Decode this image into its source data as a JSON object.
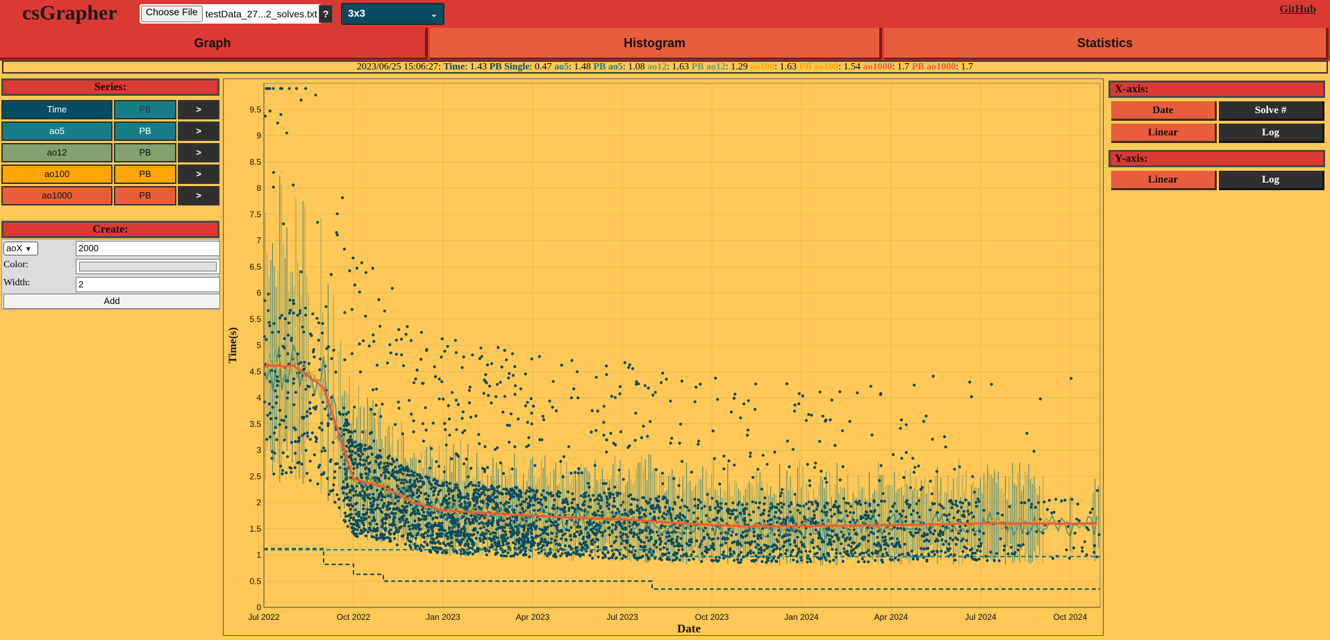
{
  "app": {
    "title": "csGrapher",
    "github": "GitHub"
  },
  "file": {
    "button": "Choose File",
    "name": "testData_27...2_solves.txt",
    "help": "?"
  },
  "puzzle": {
    "selected": "3x3"
  },
  "tabs": [
    {
      "label": "Graph"
    },
    {
      "label": "Histogram"
    },
    {
      "label": "Statistics"
    }
  ],
  "status": {
    "date": "2023/06/25 15:06:27:",
    "items": [
      {
        "label": "Time",
        "value": "1.43",
        "color": "#084c61"
      },
      {
        "label": "PB Single",
        "value": "0.47",
        "color": "#084c61"
      },
      {
        "label": "ao5",
        "value": "1.48",
        "color": "#177e89"
      },
      {
        "label": "PB ao5",
        "value": "1.08",
        "color": "#177e89"
      },
      {
        "label": "ao12",
        "value": "1.63",
        "color": "#6b9b6b"
      },
      {
        "label": "PB ao12",
        "value": "1.29",
        "color": "#6b9b6b"
      },
      {
        "label": "ao100",
        "value": "1.63",
        "color": "#ffa600"
      },
      {
        "label": "PB ao100",
        "value": "1.54",
        "color": "#ffa600"
      },
      {
        "label": "ao1000",
        "value": "1.7",
        "color": "#e85d3c"
      },
      {
        "label": "PB ao1000",
        "value": "1.7",
        "color": "#e85d3c"
      }
    ]
  },
  "series_panel": {
    "title": "Series:",
    "go_label": ">",
    "rows": [
      {
        "name": "Time",
        "pb": "PB",
        "bg": "#084c61",
        "text": "#ffffff",
        "pbbg": "#177e89",
        "pbtext": "#333333"
      },
      {
        "name": "ao5",
        "pb": "PB",
        "bg": "#177e89",
        "text": "#ffffff",
        "pbbg": "#177e89",
        "pbtext": "#ffffff"
      },
      {
        "name": "ao12",
        "pb": "PB",
        "bg": "#84a06c",
        "text": "#111111",
        "pbbg": "#84a06c",
        "pbtext": "#111111"
      },
      {
        "name": "ao100",
        "pb": "PB",
        "bg": "#ffa600",
        "text": "#111111",
        "pbbg": "#ffa600",
        "pbtext": "#111111"
      },
      {
        "name": "ao1000",
        "pb": "PB",
        "bg": "#e85d3c",
        "text": "#111111",
        "pbbg": "#e85d3c",
        "pbtext": "#111111"
      }
    ]
  },
  "create_panel": {
    "title": "Create:",
    "type": "aoX",
    "size": "2000",
    "color_label": "Color:",
    "width_label": "Width:",
    "width": "2",
    "add": "Add"
  },
  "xaxis_panel": {
    "title": "X-axis:",
    "date": "Date",
    "solve": "Solve #",
    "linear": "Linear",
    "log": "Log"
  },
  "yaxis_panel": {
    "title": "Y-axis:",
    "linear": "Linear",
    "log": "Log"
  },
  "chart_data": {
    "type": "scatter",
    "xlabel": "Date",
    "ylabel": "Time(s)",
    "x_ticks": [
      "Jul 2022",
      "Oct 2022",
      "Jan 2023",
      "Apr 2023",
      "Jul 2023",
      "Oct 2023",
      "Jan 2024",
      "Apr 2024",
      "Jul 2024",
      "Oct 2024"
    ],
    "x_range": [
      "2022-07",
      "2024-11"
    ],
    "y_ticks": [
      0,
      0.5,
      1,
      1.5,
      2,
      2.5,
      3,
      3.5,
      4,
      4.5,
      5,
      5.5,
      6,
      6.5,
      7,
      7.5,
      8,
      8.5,
      9,
      9.5
    ],
    "ylim": [
      0,
      10
    ],
    "grid": true,
    "background": "#ffc857",
    "series": [
      {
        "name": "Time",
        "style": "points",
        "color": "#084c61"
      },
      {
        "name": "ao5",
        "style": "line",
        "color": "#177e89"
      },
      {
        "name": "ao12",
        "style": "line",
        "color": "#84a06c"
      },
      {
        "name": "ao100",
        "style": "line",
        "color": "#ffa600"
      },
      {
        "name": "ao1000",
        "style": "line",
        "color": "#e85d3c"
      }
    ],
    "trend": {
      "x": [
        "2022-07",
        "2022-08",
        "2022-09",
        "2022-10",
        "2022-11",
        "2022-12",
        "2023-01",
        "2023-03",
        "2023-05",
        "2023-07",
        "2023-09",
        "2023-11",
        "2024-01",
        "2024-04",
        "2024-07",
        "2024-10",
        "2024-11"
      ],
      "ao1000": [
        4.6,
        4.6,
        4.2,
        2.45,
        2.3,
        2.0,
        1.85,
        1.78,
        1.72,
        1.68,
        1.6,
        1.55,
        1.55,
        1.57,
        1.6,
        1.6,
        1.6
      ]
    },
    "pb_steps": {
      "single": [
        {
          "x": "2022-07",
          "y": 1.12
        },
        {
          "x": "2022-09",
          "y": 0.82
        },
        {
          "x": "2022-10",
          "y": 0.63
        },
        {
          "x": "2022-11",
          "y": 0.5
        },
        {
          "x": "2023-08",
          "y": 0.35
        }
      ],
      "ao5": [
        {
          "x": "2022-07",
          "y": 1.1
        },
        {
          "x": "2023-08",
          "y": 0.97
        }
      ]
    }
  }
}
